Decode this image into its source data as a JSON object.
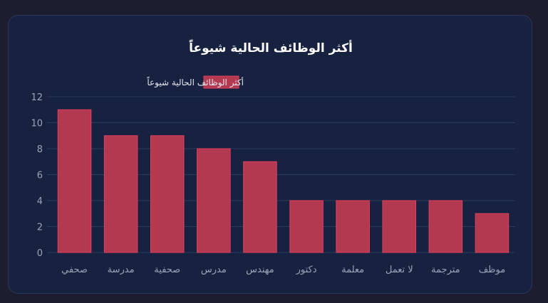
{
  "chart_data": {
    "type": "bar",
    "title": "أكثر الوظائف الحالية شيوعاً",
    "legend": {
      "position": "top-center",
      "entries": [
        "أكثر الوظائف الحالية شيوعاً"
      ]
    },
    "categories": [
      "صحفي",
      "مدرسة",
      "صحفية",
      "مدرس",
      "مهندس",
      "دكتور",
      "معلمة",
      "لا تعمل",
      "مترجمة",
      "موظف"
    ],
    "series": [
      {
        "name": "أكثر الوظائف الحالية شيوعاً",
        "values": [
          11,
          9,
          9,
          8,
          7,
          4,
          4,
          4,
          4,
          3
        ]
      }
    ],
    "ylim": [
      0,
      12
    ],
    "yticks": [
      0,
      2,
      4,
      6,
      8,
      10,
      12
    ],
    "grid": true,
    "colors": {
      "bar_fill": "#b2394f",
      "bar_border": "#e0405e",
      "grid": "#2c3a5c",
      "background": "#172240"
    }
  }
}
